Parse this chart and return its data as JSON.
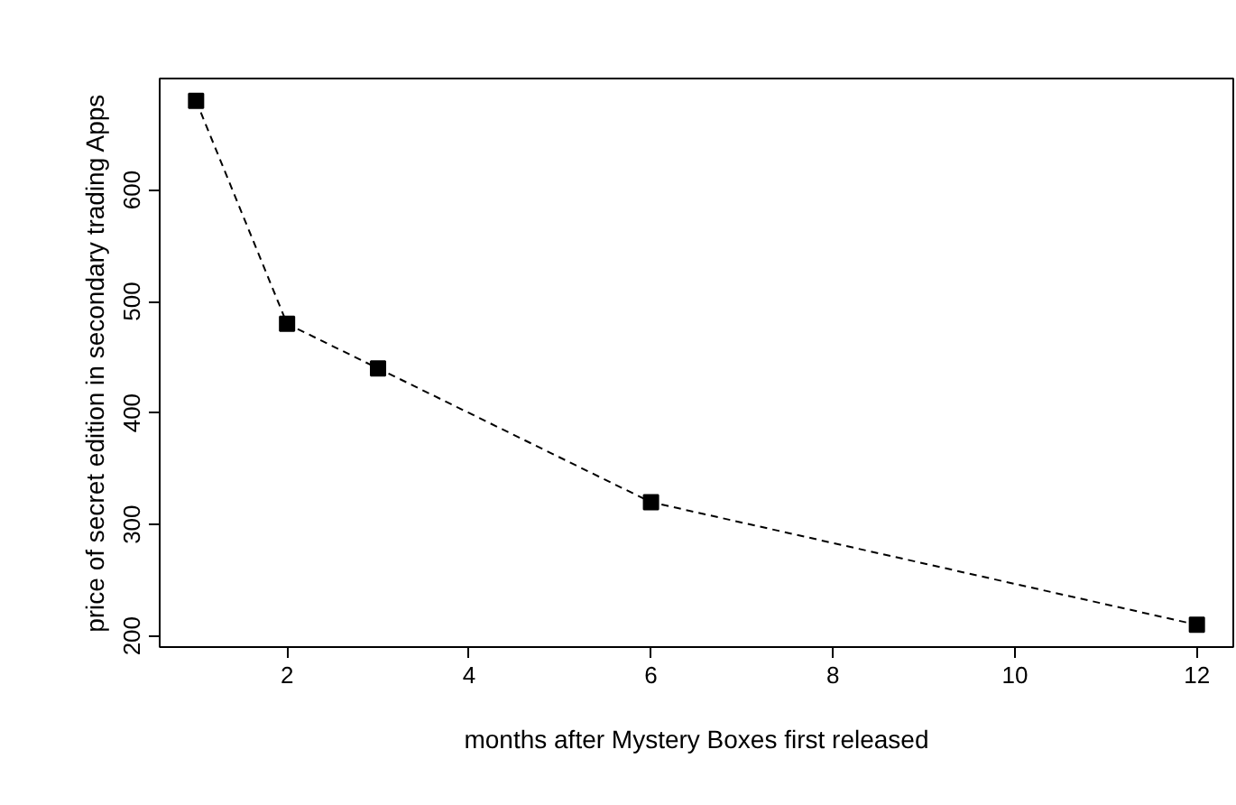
{
  "chart_data": {
    "type": "line",
    "xlabel": "months after Mystery Boxes first released",
    "ylabel": "price of secret edition in secondary trading Apps",
    "x": [
      1,
      2,
      3,
      6,
      12
    ],
    "values": [
      680,
      480,
      440,
      320,
      210
    ],
    "color": "#000000",
    "xlim": [
      0.6,
      12.4
    ],
    "ylim": [
      190,
      700
    ],
    "xticks": [
      2,
      4,
      6,
      8,
      10,
      12
    ],
    "yticks": [
      200,
      300,
      400,
      500,
      600
    ],
    "marker": "square",
    "line_style": "dashed",
    "grid": false
  }
}
